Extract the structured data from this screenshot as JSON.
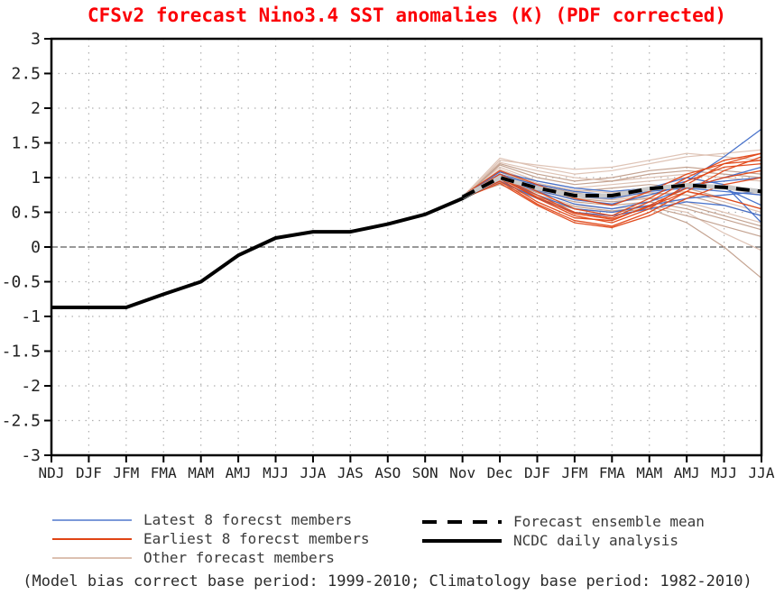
{
  "title": "CFSv2 forecast Nino3.4 SST anomalies (K) (PDF corrected)",
  "footer": "(Model bias correct base period: 1999-2010; Climatology base period: 1982-2010)",
  "colors": {
    "title": "#fb0006",
    "axis_text": "#222222",
    "grid": "#b0b0b0",
    "zero_line": "#333333",
    "box": "#000000",
    "latest": "#3f6cc8",
    "earliest": "#e04415",
    "other_light": "#dcc0b1",
    "other_dark": "#c19e8b",
    "mean_underlay": "#c9c9c9",
    "mean_dash": "#000000",
    "ncdc": "#000000"
  },
  "legend": {
    "left": [
      {
        "label": "Latest 8 forecst members",
        "color": "#7b99d9",
        "width": 2,
        "dash": ""
      },
      {
        "label": "Earliest 8 forecst members",
        "color": "#e04415",
        "width": 2,
        "dash": ""
      },
      {
        "label": "Other forecast members",
        "color": "#dcc0b1",
        "width": 2,
        "dash": ""
      }
    ],
    "right": [
      {
        "label": "Forecast ensemble mean",
        "color": "#000000",
        "width": 4,
        "dash": "16 12"
      },
      {
        "label": "NCDC daily analysis",
        "color": "#000000",
        "width": 4,
        "dash": ""
      }
    ]
  },
  "chart_data": {
    "type": "line",
    "title": "CFSv2 forecast Nino3.4 SST anomalies (K) (PDF corrected)",
    "xlabel": "",
    "ylabel": "",
    "ylim": [
      -3,
      3
    ],
    "ytick_step": 0.5,
    "grid": "dotted",
    "zero_line": true,
    "legend_position": "bottom",
    "categories": [
      "NDJ",
      "DJF",
      "JFM",
      "FMA",
      "MAM",
      "AMJ",
      "MJJ",
      "JJA",
      "JAS",
      "ASO",
      "SON",
      "Nov",
      "Dec",
      "DJF",
      "JFM",
      "FMA",
      "MAM",
      "AMJ",
      "MJJ",
      "JJA"
    ],
    "yticks": [
      "3",
      "2.5",
      "2",
      "1.5",
      "1",
      "0.5",
      "0",
      "-0.5",
      "-1",
      "-1.5",
      "-2",
      "-2.5",
      "-3"
    ],
    "series": {
      "ncdc_daily_analysis": {
        "x_start": 0,
        "values": [
          -0.87,
          -0.87,
          -0.87,
          -0.68,
          -0.5,
          -0.12,
          0.13,
          0.22,
          0.22,
          0.33,
          0.47,
          0.7,
          1.0
        ]
      },
      "forecast_ensemble_mean": {
        "x_start": 11,
        "values": [
          0.72,
          1.0,
          0.85,
          0.74,
          0.74,
          0.84,
          0.89,
          0.86,
          0.8
        ]
      }
    },
    "members_x_start": 11,
    "members": {
      "latest_8": [
        [
          0.72,
          1.05,
          0.85,
          0.72,
          0.7,
          0.8,
          0.95,
          1.3,
          1.7
        ],
        [
          0.73,
          1.0,
          0.8,
          0.62,
          0.55,
          0.65,
          0.85,
          1.0,
          1.15
        ],
        [
          0.71,
          0.98,
          0.75,
          0.55,
          0.5,
          0.6,
          0.7,
          0.75,
          0.8
        ],
        [
          0.72,
          1.02,
          0.9,
          0.8,
          0.75,
          0.8,
          0.85,
          0.8,
          0.75
        ],
        [
          0.74,
          1.08,
          0.95,
          0.85,
          0.8,
          0.85,
          0.9,
          0.85,
          0.6
        ],
        [
          0.7,
          0.95,
          0.7,
          0.5,
          0.45,
          0.55,
          0.65,
          0.6,
          0.45
        ],
        [
          0.72,
          1.0,
          0.82,
          0.68,
          0.62,
          0.75,
          0.9,
          0.95,
          1.0
        ],
        [
          0.73,
          1.05,
          0.88,
          0.75,
          0.7,
          0.85,
          1.0,
          0.9,
          0.35
        ]
      ],
      "earliest_8": [
        [
          0.72,
          1.0,
          0.7,
          0.45,
          0.35,
          0.55,
          0.9,
          1.2,
          1.35
        ],
        [
          0.71,
          0.95,
          0.62,
          0.38,
          0.3,
          0.5,
          0.8,
          1.1,
          1.3
        ],
        [
          0.73,
          1.05,
          0.8,
          0.55,
          0.45,
          0.7,
          1.0,
          1.25,
          1.35
        ],
        [
          0.72,
          0.98,
          0.65,
          0.42,
          0.38,
          0.6,
          0.85,
          1.0,
          1.1
        ],
        [
          0.74,
          1.1,
          0.9,
          0.7,
          0.6,
          0.8,
          1.05,
          1.2,
          1.25
        ],
        [
          0.7,
          0.92,
          0.6,
          0.35,
          0.28,
          0.45,
          0.7,
          0.9,
          1.0
        ],
        [
          0.72,
          1.02,
          0.75,
          0.5,
          0.42,
          0.65,
          0.95,
          1.15,
          1.2
        ],
        [
          0.73,
          1.0,
          0.72,
          0.48,
          0.4,
          0.58,
          0.8,
          0.7,
          0.55
        ]
      ],
      "other": [
        [
          0.72,
          1.28,
          1.15,
          1.05,
          1.1,
          1.2,
          1.3,
          1.35,
          1.4
        ],
        [
          0.71,
          1.2,
          1.05,
          0.95,
          1.0,
          1.1,
          1.15,
          1.1,
          1.05
        ],
        [
          0.73,
          1.15,
          0.95,
          0.85,
          0.9,
          0.95,
          1.0,
          0.9,
          0.8
        ],
        [
          0.72,
          1.1,
          0.9,
          0.8,
          0.85,
          0.9,
          0.85,
          0.7,
          0.55
        ],
        [
          0.7,
          1.05,
          0.85,
          0.75,
          0.7,
          0.75,
          0.8,
          0.65,
          0.5
        ],
        [
          0.72,
          1.0,
          0.8,
          0.7,
          0.65,
          0.7,
          0.6,
          0.45,
          0.3
        ],
        [
          0.71,
          0.95,
          0.75,
          0.6,
          0.55,
          0.6,
          0.5,
          0.2,
          -0.05
        ],
        [
          0.73,
          0.9,
          0.7,
          0.55,
          0.5,
          0.55,
          0.35,
          0.0,
          -0.45
        ],
        [
          0.72,
          1.22,
          1.1,
          1.0,
          0.95,
          1.0,
          1.05,
          1.0,
          0.95
        ],
        [
          0.7,
          1.18,
          1.0,
          0.9,
          0.95,
          1.05,
          1.1,
          1.05,
          1.0
        ],
        [
          0.72,
          1.12,
          0.92,
          0.82,
          0.78,
          0.85,
          0.9,
          0.85,
          0.75
        ],
        [
          0.73,
          1.08,
          0.88,
          0.78,
          0.72,
          0.78,
          0.75,
          0.6,
          0.45
        ],
        [
          0.71,
          1.02,
          0.82,
          0.72,
          0.68,
          0.72,
          0.65,
          0.5,
          0.35
        ],
        [
          0.72,
          0.98,
          0.78,
          0.65,
          0.6,
          0.65,
          0.55,
          0.4,
          0.25
        ],
        [
          0.7,
          1.25,
          1.18,
          1.12,
          1.15,
          1.25,
          1.35,
          1.3,
          1.25
        ],
        [
          0.73,
          0.93,
          0.72,
          0.58,
          0.52,
          0.58,
          0.45,
          0.3,
          0.15
        ]
      ]
    }
  }
}
